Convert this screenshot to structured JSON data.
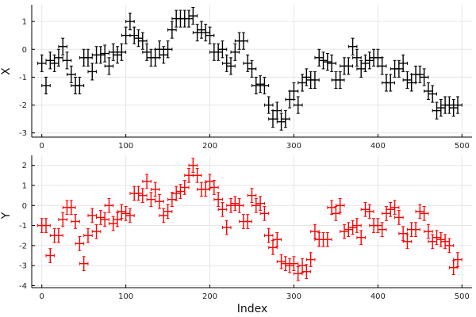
{
  "chart_data": [
    {
      "type": "scatter",
      "title": "",
      "xlabel": "",
      "ylabel": "X",
      "xlim": [
        -12,
        512
      ],
      "ylim": [
        -3.15,
        1.6
      ],
      "xticks": [
        0,
        100,
        200,
        300,
        400,
        500
      ],
      "yticks": [
        -3,
        -2,
        -1,
        0,
        1
      ],
      "xtick_labels": [
        "0",
        "100",
        "200",
        "300",
        "400",
        "500"
      ],
      "ytick_labels": [
        "-3",
        "-2",
        "-1",
        "0",
        "1"
      ],
      "grid": true,
      "color": "#000000",
      "series": [
        {
          "name": "X",
          "x": [
            0,
            5,
            10,
            15,
            20,
            25,
            30,
            35,
            40,
            45,
            50,
            55,
            60,
            65,
            70,
            75,
            80,
            85,
            90,
            95,
            100,
            105,
            110,
            115,
            120,
            125,
            130,
            135,
            140,
            145,
            150,
            155,
            160,
            165,
            170,
            175,
            180,
            185,
            190,
            195,
            200,
            205,
            210,
            215,
            220,
            225,
            230,
            235,
            240,
            245,
            250,
            255,
            260,
            265,
            270,
            275,
            280,
            285,
            290,
            295,
            300,
            305,
            310,
            315,
            320,
            325,
            330,
            335,
            340,
            345,
            350,
            355,
            360,
            365,
            370,
            375,
            380,
            385,
            390,
            395,
            400,
            405,
            410,
            415,
            420,
            425,
            430,
            435,
            440,
            445,
            450,
            455,
            460,
            465,
            470,
            475,
            480,
            485,
            490,
            495
          ],
          "y": [
            -0.5,
            -1.3,
            -0.4,
            -0.5,
            -0.3,
            0.1,
            -0.4,
            -0.9,
            -1.3,
            -1.3,
            -0.3,
            -0.3,
            -0.8,
            -0.2,
            -0.2,
            -0.15,
            -0.6,
            -0.1,
            -0.2,
            -0.1,
            0.5,
            1.0,
            0.5,
            0.4,
            0.3,
            -0.1,
            -0.3,
            -0.3,
            0.0,
            -0.2,
            0.0,
            0.7,
            1.1,
            1.1,
            1.1,
            1.1,
            1.2,
            0.6,
            0.7,
            0.6,
            0.5,
            -0.1,
            -0.1,
            0.0,
            -0.5,
            -0.6,
            -0.1,
            0.3,
            0.3,
            -0.5,
            -0.7,
            -1.3,
            -1.25,
            -1.3,
            -2.0,
            -2.5,
            -2.2,
            -2.6,
            -2.5,
            -1.8,
            -1.5,
            -2.0,
            -1.2,
            -1.0,
            -1.1,
            -1.1,
            -0.3,
            -0.4,
            -0.45,
            -0.5,
            -1.1,
            -1.1,
            -0.6,
            -0.6,
            0.1,
            -0.3,
            -0.7,
            -0.5,
            -0.4,
            -0.3,
            -0.3,
            -0.6,
            -1.2,
            -1.2,
            -0.7,
            -0.7,
            -0.5,
            -1.1,
            -1.2,
            -0.9,
            -0.9,
            -1.0,
            -1.5,
            -1.6,
            -2.2,
            -2.1,
            -2.0,
            -2.0,
            -2.1,
            -2.0
          ],
          "xerr": 5,
          "yerr": 0.3
        }
      ]
    },
    {
      "type": "scatter",
      "title": "",
      "xlabel": "Index",
      "ylabel": "Y",
      "xlim": [
        -12,
        512
      ],
      "ylim": [
        -4.1,
        2.5
      ],
      "xticks": [
        0,
        100,
        200,
        300,
        400,
        500
      ],
      "yticks": [
        -4,
        -3,
        -2,
        -1,
        0,
        1,
        2
      ],
      "xtick_labels": [
        "0",
        "100",
        "200",
        "300",
        "400",
        "500"
      ],
      "ytick_labels": [
        "-4",
        "-3",
        "-2",
        "-1",
        "0",
        "1",
        "2"
      ],
      "grid": true,
      "color": "#ff0000",
      "series": [
        {
          "name": "Y",
          "x": [
            0,
            5,
            10,
            15,
            20,
            25,
            30,
            35,
            40,
            45,
            50,
            55,
            60,
            65,
            70,
            75,
            80,
            85,
            90,
            95,
            100,
            105,
            110,
            115,
            120,
            125,
            130,
            135,
            140,
            145,
            150,
            155,
            160,
            165,
            170,
            175,
            180,
            185,
            190,
            195,
            200,
            205,
            210,
            215,
            220,
            225,
            230,
            235,
            240,
            245,
            250,
            255,
            260,
            265,
            270,
            275,
            280,
            285,
            290,
            295,
            300,
            305,
            310,
            315,
            320,
            325,
            330,
            335,
            340,
            345,
            350,
            355,
            360,
            365,
            370,
            375,
            380,
            385,
            390,
            395,
            400,
            405,
            410,
            415,
            420,
            425,
            430,
            435,
            440,
            445,
            450,
            455,
            460,
            465,
            470,
            475,
            480,
            485,
            490,
            495
          ],
          "y": [
            -1.0,
            -1.0,
            -2.5,
            -1.5,
            -1.5,
            -0.7,
            -0.1,
            -0.1,
            -0.8,
            -1.9,
            -2.9,
            -1.5,
            -0.5,
            -1.3,
            -0.6,
            -0.7,
            0.0,
            -0.9,
            -0.7,
            -0.3,
            -0.4,
            -0.5,
            0.6,
            0.6,
            0.5,
            1.2,
            0.3,
            0.8,
            0.2,
            -0.5,
            -0.3,
            0.3,
            0.6,
            0.7,
            0.9,
            1.5,
            2.0,
            1.5,
            0.8,
            0.8,
            1.2,
            0.9,
            0.3,
            -0.2,
            -1.1,
            0.0,
            0.1,
            0.0,
            -0.8,
            -0.8,
            0.5,
            0.0,
            0.1,
            -0.4,
            -1.5,
            -2.1,
            -1.7,
            -2.8,
            -2.9,
            -3.0,
            -2.9,
            -3.4,
            -3.0,
            -3.3,
            -2.7,
            -1.3,
            -1.7,
            -1.7,
            -1.7,
            -0.1,
            -0.4,
            0.0,
            -1.3,
            -1.2,
            -1.1,
            -1.0,
            -1.6,
            -0.2,
            -0.3,
            -1.0,
            -1.0,
            -1.2,
            -0.4,
            -0.2,
            -0.1,
            -0.6,
            -1.4,
            -1.8,
            -1.2,
            -1.2,
            -0.3,
            -0.4,
            -1.3,
            -1.8,
            -1.6,
            -1.7,
            -1.8,
            -2.0,
            -3.1,
            -2.7
          ],
          "xerr": 5,
          "yerr": 0.35
        }
      ]
    }
  ]
}
